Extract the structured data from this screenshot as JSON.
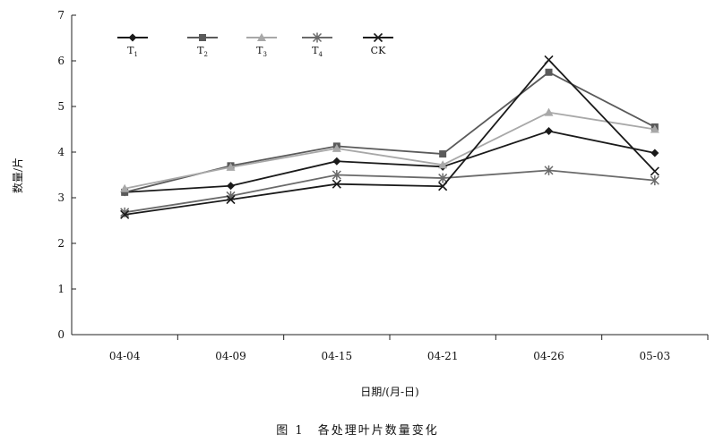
{
  "chart_data": {
    "type": "line",
    "categories": [
      "04-04",
      "04-09",
      "04-15",
      "04-21",
      "04-26",
      "05-03"
    ],
    "series": [
      {
        "name": "T1",
        "name_main": "T",
        "name_sub": "1",
        "color": "#1a1a1a",
        "marker": "diamond",
        "values": [
          3.12,
          3.26,
          3.8,
          3.68,
          4.46,
          3.98
        ]
      },
      {
        "name": "T2",
        "name_main": "T",
        "name_sub": "2",
        "color": "#5a5a5a",
        "marker": "square",
        "values": [
          3.12,
          3.7,
          4.13,
          3.96,
          5.75,
          4.55
        ]
      },
      {
        "name": "T3",
        "name_main": "T",
        "name_sub": "3",
        "color": "#a8a8a8",
        "marker": "triangle",
        "values": [
          3.2,
          3.67,
          4.08,
          3.72,
          4.87,
          4.5
        ]
      },
      {
        "name": "T4",
        "name_main": "T",
        "name_sub": "4",
        "color": "#6a6a6a",
        "marker": "star",
        "values": [
          2.68,
          3.04,
          3.5,
          3.43,
          3.6,
          3.38
        ]
      },
      {
        "name": "CK",
        "name_main": "CK",
        "name_sub": "",
        "color": "#1a1a1a",
        "marker": "x",
        "values": [
          2.63,
          2.96,
          3.3,
          3.25,
          6.02,
          3.58
        ]
      }
    ],
    "ylim": [
      0,
      7
    ],
    "yticks": [
      "0",
      "1",
      "2",
      "3",
      "4",
      "5",
      "6",
      "7"
    ],
    "xlabel": "日期/(月-日)",
    "ylabel": "数量/片",
    "legend": "top-left",
    "grid": false
  },
  "caption": "图 1　各处理叶片数量变化"
}
